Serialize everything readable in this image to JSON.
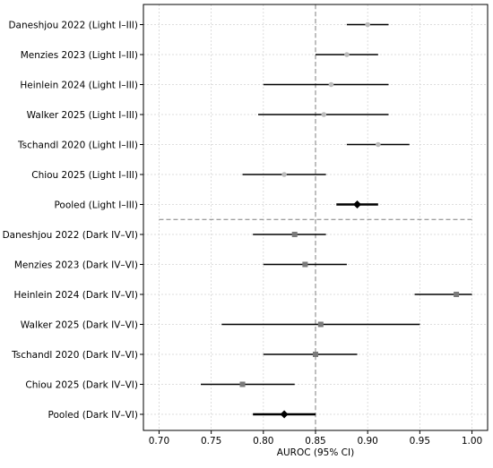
{
  "chart_data": {
    "type": "scatter",
    "subtype": "forest-plot",
    "xlabel": "AUROC (95% CI)",
    "xlim": [
      0.685,
      1.015
    ],
    "xticks": [
      "0.70",
      "0.75",
      "0.80",
      "0.85",
      "0.90",
      "0.95",
      "1.00"
    ],
    "reference_line": 0.85,
    "grid": true,
    "series": [
      {
        "name": "Light I–III",
        "marker_color": "#bbbbbb",
        "rows": [
          {
            "label": "Daneshjou 2022 (Light I–III)",
            "estimate": 0.9,
            "lower": 0.88,
            "upper": 0.92
          },
          {
            "label": "Menzies 2023 (Light I–III)",
            "estimate": 0.88,
            "lower": 0.85,
            "upper": 0.91
          },
          {
            "label": "Heinlein 2024 (Light I–III)",
            "estimate": 0.865,
            "lower": 0.8,
            "upper": 0.92
          },
          {
            "label": "Walker 2025 (Light I–III)",
            "estimate": 0.858,
            "lower": 0.795,
            "upper": 0.92
          },
          {
            "label": "Tschandl 2020 (Light I–III)",
            "estimate": 0.91,
            "lower": 0.88,
            "upper": 0.94
          },
          {
            "label": "Chiou 2025 (Light I–III)",
            "estimate": 0.82,
            "lower": 0.78,
            "upper": 0.86
          },
          {
            "label": "Pooled (Light I–III)",
            "estimate": 0.89,
            "lower": 0.87,
            "upper": 0.91,
            "pooled": true
          }
        ]
      },
      {
        "name": "Dark IV–VI",
        "marker_color": "#7a7a7a",
        "rows": [
          {
            "label": "Daneshjou 2022 (Dark IV–VI)",
            "estimate": 0.83,
            "lower": 0.79,
            "upper": 0.86
          },
          {
            "label": "Menzies 2023 (Dark IV–VI)",
            "estimate": 0.84,
            "lower": 0.8,
            "upper": 0.88
          },
          {
            "label": "Heinlein 2024 (Dark IV–VI)",
            "estimate": 0.985,
            "lower": 0.945,
            "upper": 1.0
          },
          {
            "label": "Walker 2025 (Dark IV–VI)",
            "estimate": 0.855,
            "lower": 0.76,
            "upper": 0.95
          },
          {
            "label": "Tschandl 2020 (Dark IV–VI)",
            "estimate": 0.85,
            "lower": 0.8,
            "upper": 0.89
          },
          {
            "label": "Chiou 2025 (Dark IV–VI)",
            "estimate": 0.78,
            "lower": 0.74,
            "upper": 0.83
          },
          {
            "label": "Pooled (Dark IV–VI)",
            "estimate": 0.82,
            "lower": 0.79,
            "upper": 0.85,
            "pooled": true
          }
        ]
      }
    ]
  }
}
